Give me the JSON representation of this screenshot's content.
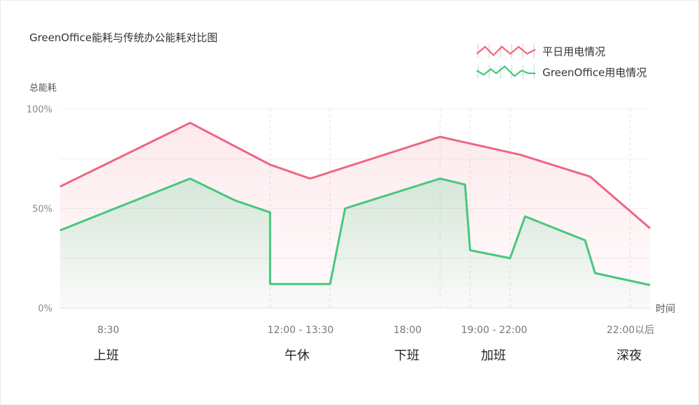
{
  "chart_data": {
    "type": "area",
    "title": "GreenOffice能耗与传统办公能耗对比图",
    "ylabel": "总能耗",
    "xlabel": "时间",
    "ylim": [
      0,
      100
    ],
    "y_ticks": [
      "100%",
      "50%",
      "0%"
    ],
    "x_ticks": [
      "8:30",
      "12:00 - 13:30",
      "18:00",
      "19:00 - 22:00",
      "22:00以后"
    ],
    "phases": [
      "上班",
      "午休",
      "下班",
      "加班",
      "深夜"
    ],
    "series": [
      {
        "name": "平日用电情况",
        "color": "#ef6582",
        "points": [
          [
            0,
            61
          ],
          [
            13,
            93
          ],
          [
            21,
            72
          ],
          [
            25,
            65
          ],
          [
            38,
            86
          ],
          [
            46,
            77
          ],
          [
            53,
            66
          ],
          [
            59,
            40
          ]
        ]
      },
      {
        "name": "GreenOffice用电情况",
        "color": "#47c77d",
        "points": [
          [
            0,
            39
          ],
          [
            13,
            65
          ],
          [
            17.5,
            54
          ],
          [
            21,
            48
          ],
          [
            21,
            12
          ],
          [
            27,
            12
          ],
          [
            28.5,
            50
          ],
          [
            38,
            65
          ],
          [
            40.5,
            62
          ],
          [
            41,
            29
          ],
          [
            45,
            25
          ],
          [
            46.5,
            46
          ],
          [
            52.5,
            34
          ],
          [
            53.5,
            17.5
          ],
          [
            59,
            11.5
          ]
        ]
      }
    ]
  }
}
